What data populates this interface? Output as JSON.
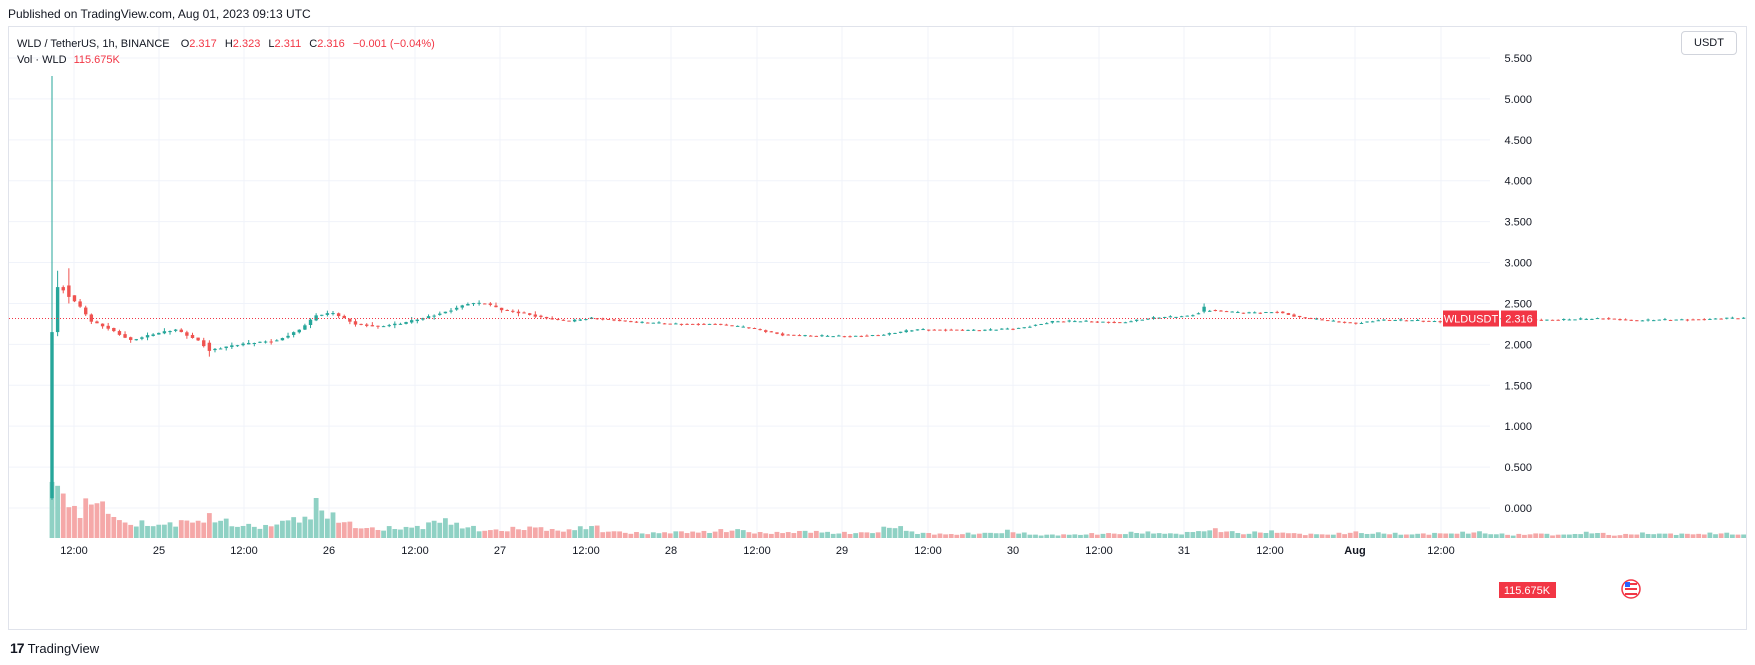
{
  "header": {
    "published": "Published on TradingView.com, Aug 01, 2023 09:13 UTC"
  },
  "legend": {
    "symbol": "WLD / TetherUS, 1h, BINANCE",
    "o_label": "O",
    "o": "2.317",
    "h_label": "H",
    "h": "2.323",
    "l_label": "L",
    "l": "2.311",
    "c_label": "C",
    "c": "2.316",
    "change": "−0.001 (−0.04%)",
    "vol_label": "Vol · WLD",
    "vol": "115.675K"
  },
  "currency_button": "USDT",
  "footer": {
    "logo_mark": "17",
    "brand": "TradingView"
  },
  "colors": {
    "up": "#26a69a",
    "down": "#ef5350",
    "up_vol": "#8fd1c4",
    "down_vol": "#f5a8a8",
    "last": "#f23645",
    "grid": "#f0f3fa"
  },
  "icons": {
    "flag": "us-flag-icon"
  },
  "chart_data": {
    "type": "candlestick",
    "symbol": "WLD / TetherUS",
    "interval": "1h",
    "exchange": "BINANCE",
    "y_ticks": [
      "5.500",
      "5.000",
      "4.500",
      "4.000",
      "3.500",
      "3.000",
      "2.500",
      "2.000",
      "1.500",
      "1.000",
      "0.500",
      "0.000"
    ],
    "ylim": [
      -0.35,
      5.85
    ],
    "x_ticks": [
      "12:00",
      "25",
      "12:00",
      "26",
      "12:00",
      "27",
      "12:00",
      "28",
      "12:00",
      "29",
      "12:00",
      "30",
      "12:00",
      "31",
      "12:00",
      "Aug",
      "12:00"
    ],
    "bold_x_ticks": [
      "Aug"
    ],
    "grid": true,
    "last_price": {
      "label": "WLDUSDT",
      "value": "2.316",
      "price": 2.316
    },
    "last_volume": "115.675K",
    "volume_max": 300,
    "price_path": [
      [
        0,
        0.12
      ],
      [
        1,
        2.7
      ],
      [
        3,
        2.6
      ],
      [
        5,
        2.45
      ],
      [
        7,
        2.28
      ],
      [
        10,
        2.2
      ],
      [
        14,
        2.05
      ],
      [
        18,
        2.12
      ],
      [
        22,
        2.18
      ],
      [
        26,
        2.05
      ],
      [
        28,
        1.93
      ],
      [
        32,
        1.98
      ],
      [
        36,
        2.02
      ],
      [
        40,
        2.05
      ],
      [
        44,
        2.18
      ],
      [
        47,
        2.35
      ],
      [
        50,
        2.38
      ],
      [
        54,
        2.25
      ],
      [
        58,
        2.22
      ],
      [
        62,
        2.25
      ],
      [
        66,
        2.32
      ],
      [
        70,
        2.4
      ],
      [
        74,
        2.5
      ],
      [
        77,
        2.5
      ],
      [
        80,
        2.42
      ],
      [
        84,
        2.38
      ],
      [
        88,
        2.32
      ],
      [
        92,
        2.28
      ],
      [
        96,
        2.32
      ],
      [
        100,
        2.3
      ],
      [
        104,
        2.27
      ],
      [
        110,
        2.25
      ],
      [
        118,
        2.25
      ],
      [
        124,
        2.2
      ],
      [
        130,
        2.12
      ],
      [
        136,
        2.1
      ],
      [
        142,
        2.1
      ],
      [
        148,
        2.12
      ],
      [
        154,
        2.18
      ],
      [
        160,
        2.18
      ],
      [
        166,
        2.17
      ],
      [
        172,
        2.2
      ],
      [
        178,
        2.28
      ],
      [
        184,
        2.28
      ],
      [
        190,
        2.27
      ],
      [
        196,
        2.32
      ],
      [
        202,
        2.35
      ],
      [
        206,
        2.42
      ],
      [
        212,
        2.38
      ],
      [
        218,
        2.4
      ],
      [
        222,
        2.33
      ],
      [
        228,
        2.28
      ],
      [
        232,
        2.26
      ],
      [
        236,
        2.3
      ],
      [
        242,
        2.29
      ],
      [
        248,
        2.28
      ],
      [
        254,
        2.3
      ],
      [
        260,
        2.32
      ],
      [
        264,
        2.3
      ],
      [
        270,
        2.3
      ],
      [
        276,
        2.32
      ],
      [
        282,
        2.29
      ],
      [
        288,
        2.3
      ],
      [
        294,
        2.31
      ],
      [
        298,
        2.32
      ],
      [
        301,
        2.316
      ]
    ],
    "spikes": [
      {
        "i": 0,
        "o": 0.12,
        "c": 2.15,
        "h": 5.28,
        "l": 0.1
      },
      {
        "i": 1,
        "o": 2.15,
        "c": 2.7,
        "h": 2.9,
        "l": 2.1
      },
      {
        "i": 3,
        "o": 2.72,
        "c": 2.58,
        "h": 2.93,
        "l": 2.5
      },
      {
        "i": 28,
        "o": 2.02,
        "c": 1.92,
        "h": 2.05,
        "l": 1.85
      },
      {
        "i": 205,
        "o": 2.4,
        "c": 2.46,
        "h": 2.5,
        "l": 2.38
      }
    ],
    "volume_profile": [
      [
        0,
        290
      ],
      [
        1,
        270
      ],
      [
        2,
        230
      ],
      [
        3,
        175
      ],
      [
        4,
        185
      ],
      [
        5,
        130
      ],
      [
        7,
        215
      ],
      [
        9,
        160
      ],
      [
        11,
        140
      ],
      [
        13,
        70
      ],
      [
        16,
        75
      ],
      [
        20,
        70
      ],
      [
        25,
        90
      ],
      [
        28,
        110
      ],
      [
        32,
        75
      ],
      [
        38,
        55
      ],
      [
        40,
        85
      ],
      [
        44,
        105
      ],
      [
        46,
        90
      ],
      [
        47,
        240
      ],
      [
        48,
        150
      ],
      [
        50,
        115
      ],
      [
        53,
        70
      ],
      [
        58,
        45
      ],
      [
        62,
        55
      ],
      [
        66,
        60
      ],
      [
        70,
        105
      ],
      [
        72,
        70
      ],
      [
        76,
        45
      ],
      [
        80,
        40
      ],
      [
        86,
        60
      ],
      [
        90,
        35
      ],
      [
        96,
        65
      ],
      [
        98,
        40
      ],
      [
        104,
        25
      ],
      [
        110,
        30
      ],
      [
        118,
        35
      ],
      [
        122,
        45
      ],
      [
        126,
        25
      ],
      [
        130,
        30
      ],
      [
        136,
        35
      ],
      [
        140,
        25
      ],
      [
        146,
        30
      ],
      [
        150,
        65
      ],
      [
        154,
        25
      ],
      [
        160,
        20
      ],
      [
        166,
        25
      ],
      [
        170,
        35
      ],
      [
        176,
        15
      ],
      [
        184,
        20
      ],
      [
        190,
        25
      ],
      [
        196,
        30
      ],
      [
        200,
        20
      ],
      [
        206,
        45
      ],
      [
        212,
        25
      ],
      [
        218,
        35
      ],
      [
        222,
        20
      ],
      [
        228,
        20
      ],
      [
        232,
        30
      ],
      [
        236,
        25
      ],
      [
        242,
        20
      ],
      [
        248,
        25
      ],
      [
        254,
        30
      ],
      [
        260,
        15
      ],
      [
        264,
        25
      ],
      [
        268,
        15
      ],
      [
        274,
        30
      ],
      [
        278,
        15
      ],
      [
        284,
        25
      ],
      [
        290,
        20
      ],
      [
        296,
        25
      ],
      [
        301,
        20
      ]
    ],
    "bar_count": 302
  }
}
